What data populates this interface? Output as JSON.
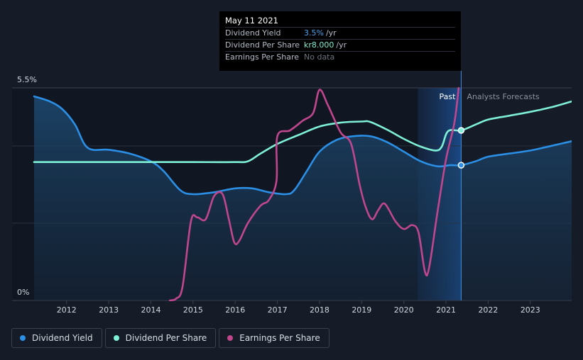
{
  "chart_data": {
    "type": "line",
    "y_axis": {
      "min": 0,
      "max": 5.5,
      "tick_labels": [
        "5.5%",
        "0%"
      ]
    },
    "x_axis": {
      "min": 2011.23,
      "max": 2023.98,
      "tick_labels": [
        "2012",
        "2013",
        "2014",
        "2015",
        "2016",
        "2017",
        "2018",
        "2019",
        "2020",
        "2021",
        "2022",
        "2023"
      ]
    },
    "regions": {
      "past_label": "Past",
      "forecast_label": "Analysts Forecasts",
      "current_year": 2021.36
    },
    "series": [
      {
        "name": "Dividend Yield",
        "color": "#2b8fe5",
        "marker": true,
        "points": [
          [
            2011.23,
            5.28
          ],
          [
            2011.6,
            5.15
          ],
          [
            2011.9,
            4.95
          ],
          [
            2012.2,
            4.55
          ],
          [
            2012.5,
            3.95
          ],
          [
            2013.0,
            3.9
          ],
          [
            2013.5,
            3.8
          ],
          [
            2014.0,
            3.6
          ],
          [
            2014.3,
            3.35
          ],
          [
            2014.7,
            2.85
          ],
          [
            2015.0,
            2.75
          ],
          [
            2015.5,
            2.8
          ],
          [
            2016.0,
            2.9
          ],
          [
            2016.4,
            2.9
          ],
          [
            2016.8,
            2.8
          ],
          [
            2017.2,
            2.75
          ],
          [
            2017.4,
            2.85
          ],
          [
            2017.7,
            3.35
          ],
          [
            2018.0,
            3.85
          ],
          [
            2018.4,
            4.15
          ],
          [
            2018.8,
            4.25
          ],
          [
            2019.2,
            4.25
          ],
          [
            2019.6,
            4.1
          ],
          [
            2020.0,
            3.85
          ],
          [
            2020.4,
            3.6
          ],
          [
            2020.8,
            3.47
          ],
          [
            2021.1,
            3.5
          ],
          [
            2021.36,
            3.5
          ],
          [
            2021.7,
            3.6
          ],
          [
            2022.0,
            3.72
          ],
          [
            2022.5,
            3.8
          ],
          [
            2023.0,
            3.88
          ],
          [
            2023.5,
            4.0
          ],
          [
            2023.98,
            4.12
          ]
        ]
      },
      {
        "name": "Dividend Per Share",
        "color": "#7ef0d6",
        "marker": true,
        "points": [
          [
            2011.23,
            3.58
          ],
          [
            2012.0,
            3.58
          ],
          [
            2013.0,
            3.58
          ],
          [
            2014.0,
            3.58
          ],
          [
            2015.0,
            3.58
          ],
          [
            2016.0,
            3.58
          ],
          [
            2016.3,
            3.6
          ],
          [
            2016.6,
            3.8
          ],
          [
            2017.0,
            4.05
          ],
          [
            2017.5,
            4.28
          ],
          [
            2018.0,
            4.5
          ],
          [
            2018.5,
            4.6
          ],
          [
            2019.0,
            4.63
          ],
          [
            2019.2,
            4.62
          ],
          [
            2019.6,
            4.42
          ],
          [
            2020.0,
            4.18
          ],
          [
            2020.4,
            3.98
          ],
          [
            2020.75,
            3.88
          ],
          [
            2020.9,
            3.98
          ],
          [
            2021.05,
            4.38
          ],
          [
            2021.36,
            4.4
          ],
          [
            2021.7,
            4.55
          ],
          [
            2022.0,
            4.68
          ],
          [
            2022.5,
            4.78
          ],
          [
            2023.0,
            4.88
          ],
          [
            2023.5,
            5.0
          ],
          [
            2023.98,
            5.15
          ]
        ]
      },
      {
        "name": "Earnings Per Share",
        "color": "#c0468d",
        "marker": false,
        "points": [
          [
            2014.45,
            0.0
          ],
          [
            2014.6,
            0.05
          ],
          [
            2014.75,
            0.35
          ],
          [
            2014.95,
            2.05
          ],
          [
            2015.1,
            2.15
          ],
          [
            2015.3,
            2.1
          ],
          [
            2015.5,
            2.7
          ],
          [
            2015.7,
            2.75
          ],
          [
            2015.85,
            2.1
          ],
          [
            2015.98,
            1.5
          ],
          [
            2016.1,
            1.55
          ],
          [
            2016.3,
            2.0
          ],
          [
            2016.6,
            2.45
          ],
          [
            2016.8,
            2.6
          ],
          [
            2016.98,
            3.1
          ],
          [
            2017.0,
            4.25
          ],
          [
            2017.3,
            4.4
          ],
          [
            2017.6,
            4.65
          ],
          [
            2017.85,
            4.85
          ],
          [
            2018.0,
            5.45
          ],
          [
            2018.2,
            5.05
          ],
          [
            2018.5,
            4.35
          ],
          [
            2018.75,
            4.05
          ],
          [
            2018.95,
            3.0
          ],
          [
            2019.1,
            2.4
          ],
          [
            2019.25,
            2.1
          ],
          [
            2019.4,
            2.35
          ],
          [
            2019.55,
            2.5
          ],
          [
            2019.8,
            2.05
          ],
          [
            2020.0,
            1.85
          ],
          [
            2020.2,
            1.95
          ],
          [
            2020.35,
            1.75
          ],
          [
            2020.5,
            0.75
          ],
          [
            2020.6,
            0.85
          ],
          [
            2020.8,
            2.3
          ],
          [
            2021.0,
            3.65
          ],
          [
            2021.2,
            4.6
          ],
          [
            2021.3,
            5.5
          ]
        ]
      }
    ]
  },
  "tooltip": {
    "date": "May 11 2021",
    "rows": [
      {
        "label": "Dividend Yield",
        "value": "3.5%",
        "unit": "/yr"
      },
      {
        "label": "Dividend Per Share",
        "value": "kr8.000",
        "unit": "/yr"
      },
      {
        "label": "Earnings Per Share",
        "value": "No data"
      }
    ]
  },
  "legend": [
    {
      "label": "Dividend Yield",
      "color": "#2b8fe5"
    },
    {
      "label": "Dividend Per Share",
      "color": "#7ef0d6"
    },
    {
      "label": "Earnings Per Share",
      "color": "#c0468d"
    }
  ]
}
